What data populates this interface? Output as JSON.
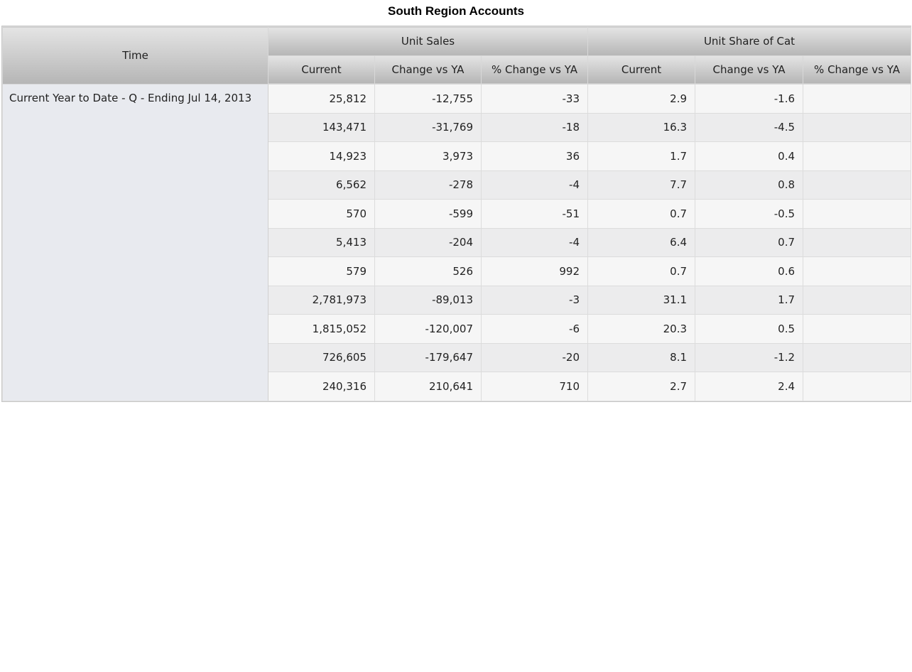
{
  "title": "South Region Accounts",
  "header": {
    "time": "Time",
    "groups": [
      "Unit Sales",
      "Unit Share of Cat"
    ],
    "subheaders": [
      "Current",
      "Change vs YA",
      "% Change vs YA",
      "Current",
      "Change vs YA",
      "% Change vs YA"
    ]
  },
  "time_label": "Current Year to Date - Q - Ending Jul 14, 2013",
  "chart_data": {
    "type": "table",
    "title": "South Region Accounts",
    "row_header": "Time",
    "row_label": "Current Year to Date - Q - Ending Jul 14, 2013",
    "column_groups": [
      {
        "name": "Unit Sales",
        "columns": [
          "Current",
          "Change vs YA",
          "% Change vs YA"
        ]
      },
      {
        "name": "Unit Share of Cat",
        "columns": [
          "Current",
          "Change vs YA",
          "% Change vs YA"
        ]
      }
    ],
    "rows": [
      [
        "25,812",
        "-12,755",
        "-33",
        "2.9",
        "-1.6",
        ""
      ],
      [
        "143,471",
        "-31,769",
        "-18",
        "16.3",
        "-4.5",
        ""
      ],
      [
        "14,923",
        "3,973",
        "36",
        "1.7",
        "0.4",
        ""
      ],
      [
        "6,562",
        "-278",
        "-4",
        "7.7",
        "0.8",
        ""
      ],
      [
        "570",
        "-599",
        "-51",
        "0.7",
        "-0.5",
        ""
      ],
      [
        "5,413",
        "-204",
        "-4",
        "6.4",
        "0.7",
        ""
      ],
      [
        "579",
        "526",
        "992",
        "0.7",
        "0.6",
        ""
      ],
      [
        "2,781,973",
        "-89,013",
        "-3",
        "31.1",
        "1.7",
        ""
      ],
      [
        "1,815,052",
        "-120,007",
        "-6",
        "20.3",
        "0.5",
        ""
      ],
      [
        "726,605",
        "-179,647",
        "-20",
        "8.1",
        "-1.2",
        ""
      ],
      [
        "240,316",
        "210,641",
        "710",
        "2.7",
        "2.4",
        ""
      ]
    ]
  }
}
